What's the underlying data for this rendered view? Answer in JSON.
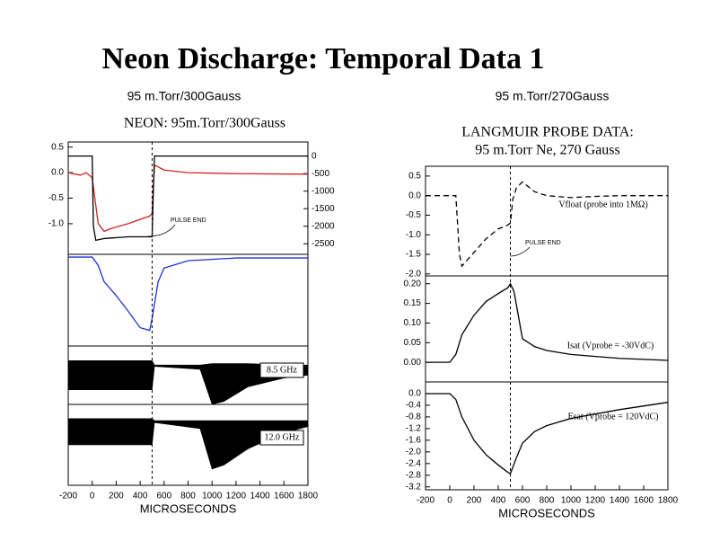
{
  "title": "Neon Discharge: Temporal Data 1",
  "chart_data": [
    {
      "type": "line",
      "title": "95 m.Torr/300Gauss",
      "plot_title": [
        "NEON: 95m.Torr/300Gauss"
      ],
      "xlabel": "MICROSECONDS",
      "xlim": [
        -200,
        1800
      ],
      "xticks": [
        -200,
        0,
        200,
        400,
        600,
        800,
        1000,
        1200,
        1400,
        1600,
        1800
      ],
      "pulse_end": 500,
      "pulse_label": "PULSE END",
      "panels": [
        {
          "ylim": [
            -1.6,
            0.6
          ],
          "yticks": [
            {
              "value": 0.5,
              "label": "0.5"
            },
            {
              "value": 0,
              "label": "0.0"
            },
            {
              "value": -0.5,
              "label": "-0.5"
            },
            {
              "value": -1,
              "label": "-1.0"
            }
          ],
          "y2lim": [
            -2800,
            400
          ],
          "y2ticks": [
            0,
            -500,
            -1000,
            -1500,
            -2000,
            -2500
          ],
          "series": [
            {
              "color": "#d42020",
              "x": [
                -200,
                -100,
                -50,
                0,
                50,
                100,
                150,
                300,
                480,
                500,
                520,
                600,
                800,
                1200,
                1800
              ],
              "values": [
                0,
                -0.05,
                0,
                -0.1,
                -1.0,
                -1.15,
                -1.1,
                -1.0,
                -0.85,
                -0.8,
                0.15,
                0.05,
                0,
                -0.02,
                -0.03
              ]
            },
            {
              "color": "#000000",
              "axis": "y2",
              "x": [
                -200,
                0,
                10,
                30,
                100,
                300,
                500,
                510,
                520,
                1800
              ],
              "values": [
                0,
                0,
                -2000,
                -2400,
                -2350,
                -2300,
                -2300,
                -1000,
                0,
                0
              ]
            }
          ]
        },
        {
          "ylim": [
            0,
            1
          ],
          "yticks": [],
          "series": [
            {
              "color": "#1f2fd8",
              "x": [
                -200,
                0,
                50,
                100,
                200,
                300,
                400,
                480,
                500,
                550,
                600,
                800,
                1200,
                1800
              ],
              "values": [
                0.97,
                0.97,
                0.88,
                0.7,
                0.55,
                0.38,
                0.2,
                0.17,
                0.3,
                0.7,
                0.85,
                0.93,
                0.96,
                0.96
              ]
            }
          ]
        },
        {
          "type": "band",
          "ylim": [
            -1,
            1
          ],
          "yticks": [],
          "label": "8.5 GHz",
          "series": [
            {
              "color": "#000000",
              "x": [
                -200,
                0,
                50,
                500,
                520,
                900,
                1000,
                1100,
                1300,
                1600,
                1800
              ],
              "upper": [
                0.5,
                0.5,
                0.5,
                0.5,
                0.35,
                0.35,
                0.4,
                0.4,
                0.4,
                0.35,
                0.35
              ],
              "lower": [
                -0.5,
                -0.5,
                -0.5,
                -0.5,
                0.3,
                0.2,
                -1.0,
                -0.9,
                -0.4,
                -0.1,
                0
              ]
            }
          ]
        },
        {
          "type": "band",
          "ylim": [
            -1,
            1
          ],
          "yticks": [],
          "label": "12.0 GHz",
          "series": [
            {
              "color": "#000000",
              "x": [
                -200,
                0,
                50,
                500,
                520,
                900,
                1000,
                1100,
                1300,
                1600,
                1800
              ],
              "upper": [
                0.65,
                0.65,
                0.65,
                0.65,
                0.6,
                0.6,
                0.6,
                0.6,
                0.6,
                0.6,
                0.6
              ],
              "lower": [
                0,
                0,
                0,
                0,
                0.55,
                0.4,
                -0.6,
                -0.5,
                -0.1,
                0.3,
                0.45
              ]
            }
          ]
        }
      ]
    },
    {
      "type": "line",
      "title": "95 m.Torr/270Gauss",
      "plot_title": [
        "LANGMUIR PROBE DATA:",
        "95 m.Torr Ne, 270 Gauss"
      ],
      "xlabel": "MICROSECONDS",
      "xlim": [
        -200,
        1800
      ],
      "xticks": [
        -200,
        0,
        200,
        400,
        600,
        800,
        1000,
        1200,
        1400,
        1600,
        1800
      ],
      "pulse_end": 500,
      "pulse_label": "PULSE END",
      "panels": [
        {
          "ylim": [
            -2.05,
            0.75
          ],
          "yticks": [
            {
              "value": 0.5,
              "label": "0.5"
            },
            {
              "value": 0,
              "label": "0.0"
            },
            {
              "value": -0.5,
              "label": "-0.5"
            },
            {
              "value": -1,
              "label": "-1.0"
            },
            {
              "value": -1.5,
              "label": "-1.5"
            },
            {
              "value": -2,
              "label": "-2.0"
            }
          ],
          "label": "Vfloat (probe into 1MΩ)",
          "series": [
            {
              "color": "#000000",
              "dashed": true,
              "x": [
                -200,
                0,
                50,
                80,
                100,
                200,
                300,
                400,
                480,
                500,
                520,
                550,
                600,
                700,
                800,
                1000,
                1200,
                1400,
                1800
              ],
              "values": [
                0,
                0,
                0,
                -1.5,
                -1.8,
                -1.45,
                -1.1,
                -0.85,
                -0.75,
                -0.7,
                -0.1,
                0.2,
                0.35,
                0.1,
                0,
                -0.05,
                -0.02,
                0,
                0
              ]
            }
          ]
        },
        {
          "ylim": [
            -0.05,
            0.22
          ],
          "yticks": [
            {
              "value": 0.2,
              "label": "0.20"
            },
            {
              "value": 0.15,
              "label": "0.15"
            },
            {
              "value": 0.1,
              "label": "0.10"
            },
            {
              "value": 0.05,
              "label": "0.05"
            },
            {
              "value": 0,
              "label": "0.00"
            }
          ],
          "label": "Isat (Vprobe = -30VdC)",
          "series": [
            {
              "color": "#000000",
              "x": [
                -200,
                0,
                50,
                100,
                200,
                300,
                400,
                480,
                500,
                530,
                600,
                700,
                800,
                1000,
                1200,
                1400,
                1800
              ],
              "values": [
                0,
                0,
                0.02,
                0.07,
                0.12,
                0.155,
                0.175,
                0.19,
                0.2,
                0.18,
                0.06,
                0.04,
                0.03,
                0.02,
                0.015,
                0.01,
                0.005
              ]
            }
          ]
        },
        {
          "ylim": [
            -3.3,
            0.4
          ],
          "yticks": [
            {
              "value": 0,
              "label": "0.0"
            },
            {
              "value": -0.4,
              "label": "-0.4"
            },
            {
              "value": -0.8,
              "label": "-0.8"
            },
            {
              "value": -1.2,
              "label": "-1.2"
            },
            {
              "value": -1.6,
              "label": "-1.6"
            },
            {
              "value": -2,
              "label": "-2.0"
            },
            {
              "value": -2.4,
              "label": "-2.4"
            },
            {
              "value": -2.8,
              "label": "-2.8"
            },
            {
              "value": -3.2,
              "label": "-3.2"
            }
          ],
          "label": "Esat (Vprobe = 120VdC)",
          "series": [
            {
              "color": "#000000",
              "x": [
                -200,
                0,
                50,
                100,
                200,
                300,
                400,
                480,
                500,
                550,
                600,
                700,
                800,
                1000,
                1200,
                1400,
                1800
              ],
              "values": [
                0,
                0,
                -0.2,
                -0.8,
                -1.6,
                -2.1,
                -2.45,
                -2.7,
                -2.75,
                -2.2,
                -1.7,
                -1.3,
                -1.1,
                -0.85,
                -0.7,
                -0.55,
                -0.3
              ]
            }
          ]
        }
      ]
    }
  ]
}
